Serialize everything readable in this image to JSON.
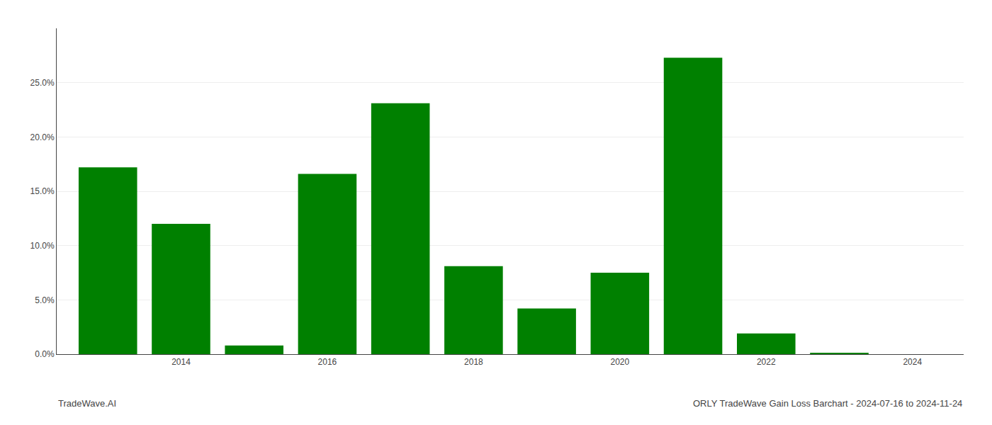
{
  "chart_data": {
    "type": "bar",
    "x": [
      2013,
      2014,
      2015,
      2016,
      2017,
      2018,
      2019,
      2020,
      2021,
      2022,
      2023
    ],
    "values": [
      0.172,
      0.12,
      0.008,
      0.166,
      0.231,
      0.081,
      0.042,
      0.075,
      0.273,
      0.019,
      0.001
    ],
    "color": "#008000",
    "xlim": [
      2012.3,
      2024.7
    ],
    "xticks": [
      2014,
      2016,
      2018,
      2020,
      2022,
      2024
    ],
    "ylim": [
      0,
      0.3
    ],
    "yticks": [
      {
        "value": 0.0,
        "label": "0.0%"
      },
      {
        "value": 0.05,
        "label": "5.0%"
      },
      {
        "value": 0.1,
        "label": "10.0%"
      },
      {
        "value": 0.15,
        "label": "15.0%"
      },
      {
        "value": 0.2,
        "label": "20.0%"
      },
      {
        "value": 0.25,
        "label": "25.0%"
      }
    ],
    "grid": "y",
    "annotations": [
      "TradeWave.AI",
      "ORLY TradeWave Gain Loss Barchart - 2024-07-16 to 2024-11-24"
    ]
  }
}
